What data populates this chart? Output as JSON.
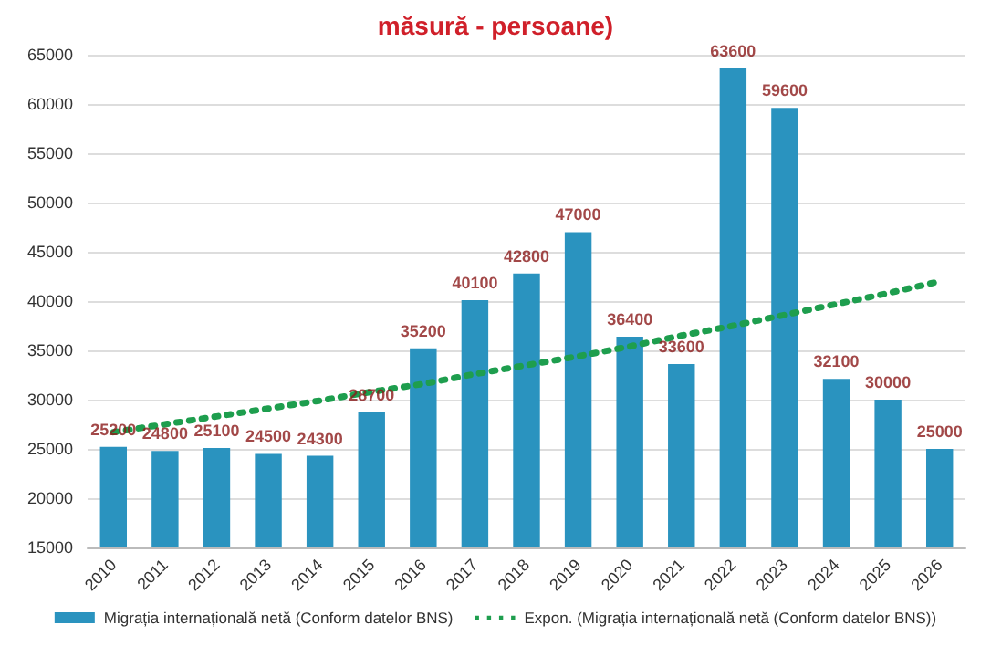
{
  "chart_data": {
    "type": "bar",
    "title": "măsură - persoane)",
    "categories": [
      "2010",
      "2011",
      "2012",
      "2013",
      "2014",
      "2015",
      "2016",
      "2017",
      "2018",
      "2019",
      "2020",
      "2021",
      "2022",
      "2023",
      "2024",
      "2025",
      "2026"
    ],
    "series": [
      {
        "name": "Migrația internațională netă (Conform datelor BNS)",
        "color": "#2a93bf",
        "values": [
          25200,
          24800,
          25100,
          24500,
          24300,
          28700,
          35200,
          40100,
          42800,
          47000,
          36400,
          33600,
          63600,
          59600,
          32100,
          30000,
          25000
        ],
        "value_labels": [
          "25200",
          "24800",
          "25100",
          "24500",
          "24300",
          "28700",
          "35200",
          "40100",
          "42800",
          "47000",
          "36400",
          "33600",
          "63600",
          "59600",
          "32100",
          "30000",
          "25000"
        ]
      },
      {
        "name": "Expon. (Migrația internațională netă (Conform datelor BNS))",
        "type": "line",
        "color": "#1e9e4e",
        "marker": "none",
        "line_style": "dotted",
        "values": [
          26700,
          27500,
          28300,
          29100,
          29900,
          30800,
          31600,
          32600,
          33500,
          34400,
          35400,
          36500,
          37500,
          38600,
          39700,
          40800,
          42000
        ]
      }
    ],
    "ylim": [
      15000,
      65000
    ],
    "yticks": [
      15000,
      20000,
      25000,
      30000,
      35000,
      40000,
      45000,
      50000,
      55000,
      60000,
      65000
    ],
    "grid": "y",
    "legend": "bottom"
  }
}
